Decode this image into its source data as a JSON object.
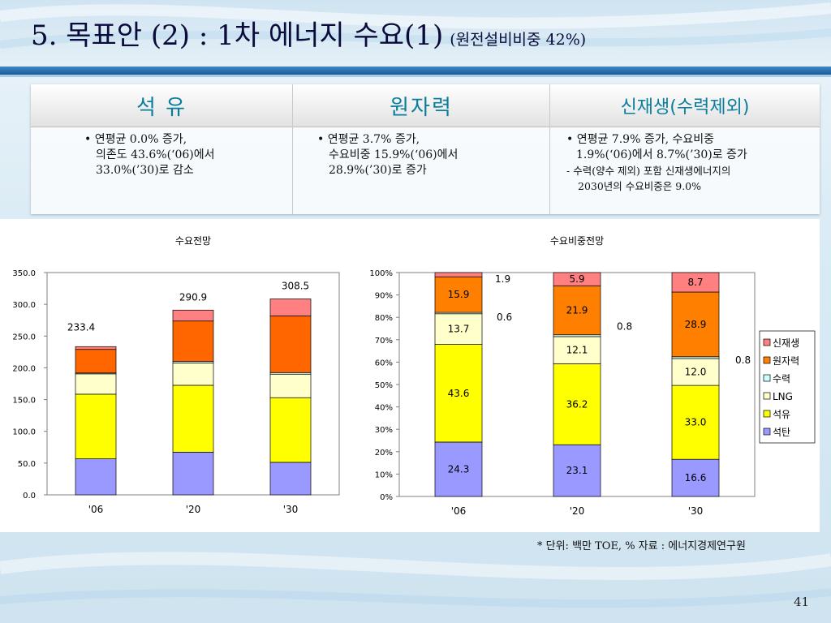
{
  "slide": {
    "title": "5. 목표안 (2) : 1차 에너지 수요(1)",
    "subtitle": "(원전설비비중 42%)",
    "footnote": "* 단위: 백만 TOE, % 자료 : 에너지경제연구원",
    "page_number": "41"
  },
  "summary": {
    "columns": [
      {
        "heading": "석 유",
        "lines": [
          "• 연평균 0.0% 증가,",
          "의존도 43.6%(‘06)에서",
          "33.0%(’30)로 감소"
        ]
      },
      {
        "heading": "원자력",
        "lines": [
          "• 연평균 3.7% 증가,",
          "수요비중 15.9%(‘06)에서",
          "28.9%(’30)로 증가"
        ]
      },
      {
        "heading": "신재생(수력제외)",
        "lines": [
          "• 연평균 7.9% 증가, 수요비중",
          "1.9%(‘06)에서 8.7%(’30)로 증가",
          "- 수력(양수 제외) 포함 신재생에너지의",
          "2030년의 수요비중은 9.0%"
        ]
      }
    ]
  },
  "chart_data": [
    {
      "type": "bar",
      "stacked": true,
      "title": "수요전망",
      "categories": [
        "'06",
        "'20",
        "'30"
      ],
      "ylim": [
        0,
        350
      ],
      "yticks": [
        "0.0",
        "50.0",
        "100.0",
        "150.0",
        "200.0",
        "250.0",
        "300.0",
        "350.0"
      ],
      "totals": [
        233.4,
        290.9,
        308.5
      ],
      "total_labels": [
        "233.4",
        "290.9",
        "308.5"
      ],
      "series": [
        {
          "name": "석탄",
          "values": [
            56.7,
            67.2,
            51.2
          ],
          "color": "#9999ff"
        },
        {
          "name": "석유",
          "values": [
            101.8,
            105.3,
            101.8
          ],
          "color": "#ffff00"
        },
        {
          "name": "LNG",
          "values": [
            32.0,
            35.2,
            37.0
          ],
          "color": "#ffffcc"
        },
        {
          "name": "수력",
          "values": [
            1.4,
            2.3,
            2.5
          ],
          "color": "#ccffff"
        },
        {
          "name": "원자력",
          "values": [
            37.1,
            63.7,
            89.2
          ],
          "color": "#ff6600"
        },
        {
          "name": "신재생",
          "values": [
            4.4,
            17.2,
            26.8
          ],
          "color": "#ff8080"
        }
      ]
    },
    {
      "type": "bar",
      "stacked": true,
      "percent": true,
      "title": "수요비중전망",
      "categories": [
        "'06",
        "'20",
        "'30"
      ],
      "ylim": [
        0,
        100
      ],
      "yticks": [
        "0%",
        "10%",
        "20%",
        "30%",
        "40%",
        "50%",
        "60%",
        "70%",
        "80%",
        "90%",
        "100%"
      ],
      "legend_position": "right",
      "series": [
        {
          "name": "석탄",
          "values": [
            24.3,
            23.1,
            16.6
          ],
          "labels": [
            "24.3",
            "23.1",
            "16.6"
          ],
          "color": "#9999ff"
        },
        {
          "name": "석유",
          "values": [
            43.6,
            36.2,
            33.0
          ],
          "labels": [
            "43.6",
            "36.2",
            "33.0"
          ],
          "color": "#ffff00"
        },
        {
          "name": "LNG",
          "values": [
            13.7,
            12.1,
            12.0
          ],
          "labels": [
            "13.7",
            "12.1",
            "12.0"
          ],
          "color": "#ffffcc"
        },
        {
          "name": "수력",
          "values": [
            0.6,
            0.8,
            0.8
          ],
          "labels": [
            "0.6",
            "0.8",
            "0.8"
          ],
          "color": "#ccffff"
        },
        {
          "name": "원자력",
          "values": [
            15.9,
            21.9,
            28.9
          ],
          "labels": [
            "15.9",
            "21.9",
            "28.9"
          ],
          "color": "#ff8000"
        },
        {
          "name": "신재생",
          "values": [
            1.9,
            5.9,
            8.7
          ],
          "labels": [
            "1.9",
            "5.9",
            "8.7"
          ],
          "color": "#ff8080"
        }
      ],
      "legend": [
        "신재생",
        "원자력",
        "수력",
        "LNG",
        "석유",
        "석탄"
      ]
    }
  ]
}
